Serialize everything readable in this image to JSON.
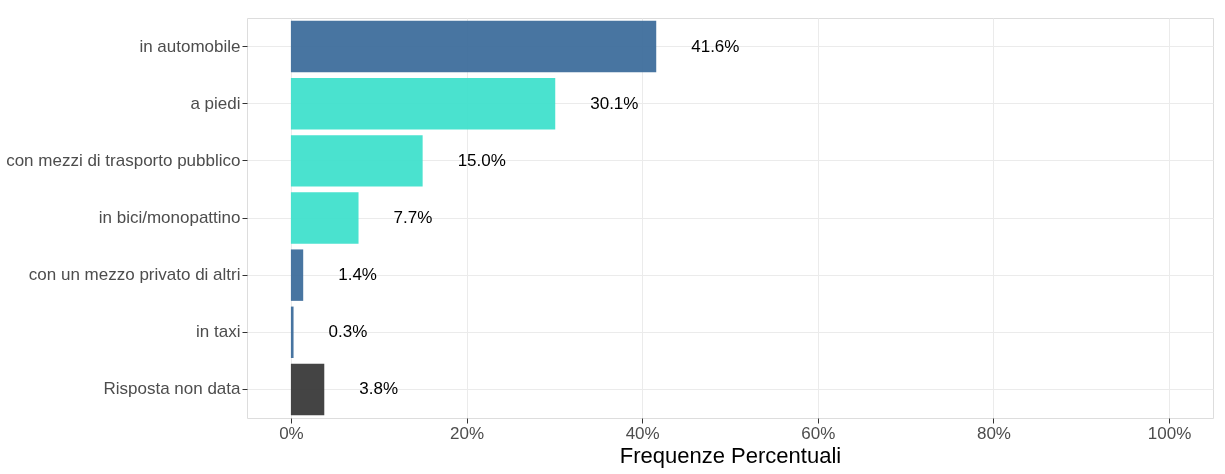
{
  "chart_data": {
    "type": "bar",
    "orientation": "horizontal",
    "xlabel": "Frequenze Percentuali",
    "categories": [
      "in automobile",
      "a piedi",
      "con mezzi di trasporto pubblico",
      "in bici/monopattino",
      "con un mezzo privato di altri",
      "in taxi",
      "Risposta non data"
    ],
    "values": [
      41.6,
      30.1,
      15.0,
      7.7,
      1.4,
      0.3,
      3.8
    ],
    "colors": [
      "#3e6e9c",
      "#40e0cc",
      "#40e0cc",
      "#40e0cc",
      "#3e6e9c",
      "#3e6e9c",
      "#3a3a3a"
    ],
    "value_labels": [
      "41.6%",
      "30.1%",
      "15.0%",
      "7.7%",
      "1.4%",
      "0.3%",
      "3.8%"
    ],
    "xlim": [
      -5,
      105
    ],
    "xticks": [
      {
        "value": 0,
        "label": "0%"
      },
      {
        "value": 20,
        "label": "20%"
      },
      {
        "value": 40,
        "label": "40%"
      },
      {
        "value": 60,
        "label": "60%"
      },
      {
        "value": 80,
        "label": "80%"
      },
      {
        "value": 100,
        "label": "100%"
      }
    ],
    "grid": true
  }
}
